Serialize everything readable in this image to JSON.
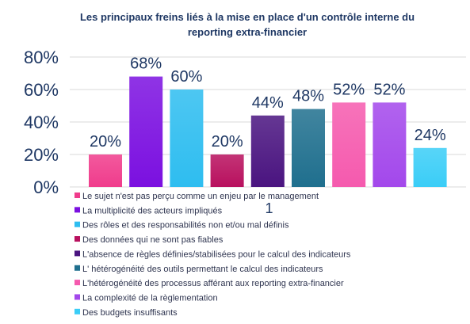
{
  "chart_data": {
    "type": "bar",
    "title_lines": [
      "Les principaux freins liés à la mise en place d'un contrôle interne du",
      "reporting extra-financier"
    ],
    "categories": [
      "1"
    ],
    "ylim": [
      0,
      80
    ],
    "y_ticks": [
      0,
      20,
      40,
      60,
      80
    ],
    "y_tick_labels": [
      "0%",
      "20%",
      "40%",
      "60%",
      "80%"
    ],
    "grid": true,
    "legend": "bottom",
    "series": [
      {
        "name": "Le sujet n'est pas perçu comme un enjeu par le management",
        "values": [
          20
        ],
        "data_label": "20%",
        "color": "#F03C8C"
      },
      {
        "name": "La multiplicité des acteurs impliqués",
        "values": [
          68
        ],
        "data_label": "68%",
        "color": "#7B10E0"
      },
      {
        "name": "Des rôles et des responsabilités non et/ou mal définis",
        "values": [
          60
        ],
        "data_label": "60%",
        "color": "#2EBDF0"
      },
      {
        "name": "Des données qui ne sont pas fiables",
        "values": [
          20
        ],
        "data_label": "20%",
        "color": "#B8105E"
      },
      {
        "name": "L'absence de règles définies/stabilisées pour le calcul des indicateurs",
        "values": [
          44
        ],
        "data_label": "44%",
        "color": "#4A1480"
      },
      {
        "name": "L' hétérogénéité des outils permettant le calcul des indicateurs",
        "values": [
          48
        ],
        "data_label": "48%",
        "color": "#1F6F8E"
      },
      {
        "name": "L'hétérogénéité des processus afférant aux reporting extra-financier",
        "values": [
          52
        ],
        "data_label": "52%",
        "color": "#F55AAE"
      },
      {
        "name": "La complexité de la règlementation",
        "values": [
          52
        ],
        "data_label": "52%",
        "color": "#A348EB"
      },
      {
        "name": "Des budgets insuffisants",
        "values": [
          24
        ],
        "data_label": "24%",
        "color": "#3ACDF7"
      }
    ]
  }
}
